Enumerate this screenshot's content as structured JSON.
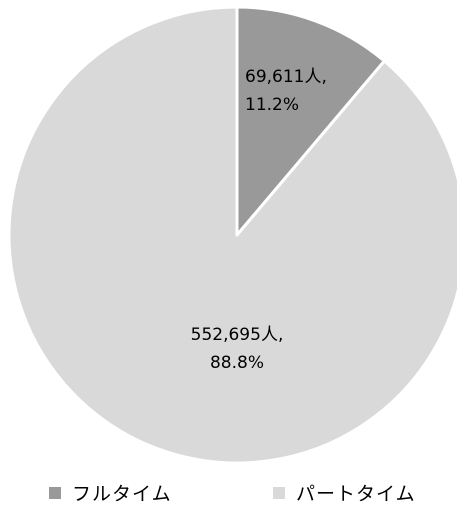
{
  "chart_data": {
    "type": "pie",
    "slices": [
      {
        "name": "フルタイム",
        "count": 69611,
        "percent": 11.2,
        "color": "#999999",
        "label_line1": "69,611人,",
        "label_line2": "11.2%"
      },
      {
        "name": "パートタイム",
        "count": 552695,
        "percent": 88.8,
        "color": "#d9d9d9",
        "label_line1": "552,695人,",
        "label_line2": "88.8%"
      }
    ],
    "legend": {
      "placement": "bottom",
      "items": [
        {
          "label": "フルタイム",
          "color": "#999999"
        },
        {
          "label": "パートタイム",
          "color": "#d9d9d9"
        }
      ]
    },
    "start_angle_deg": 0,
    "direction": "clockwise"
  }
}
